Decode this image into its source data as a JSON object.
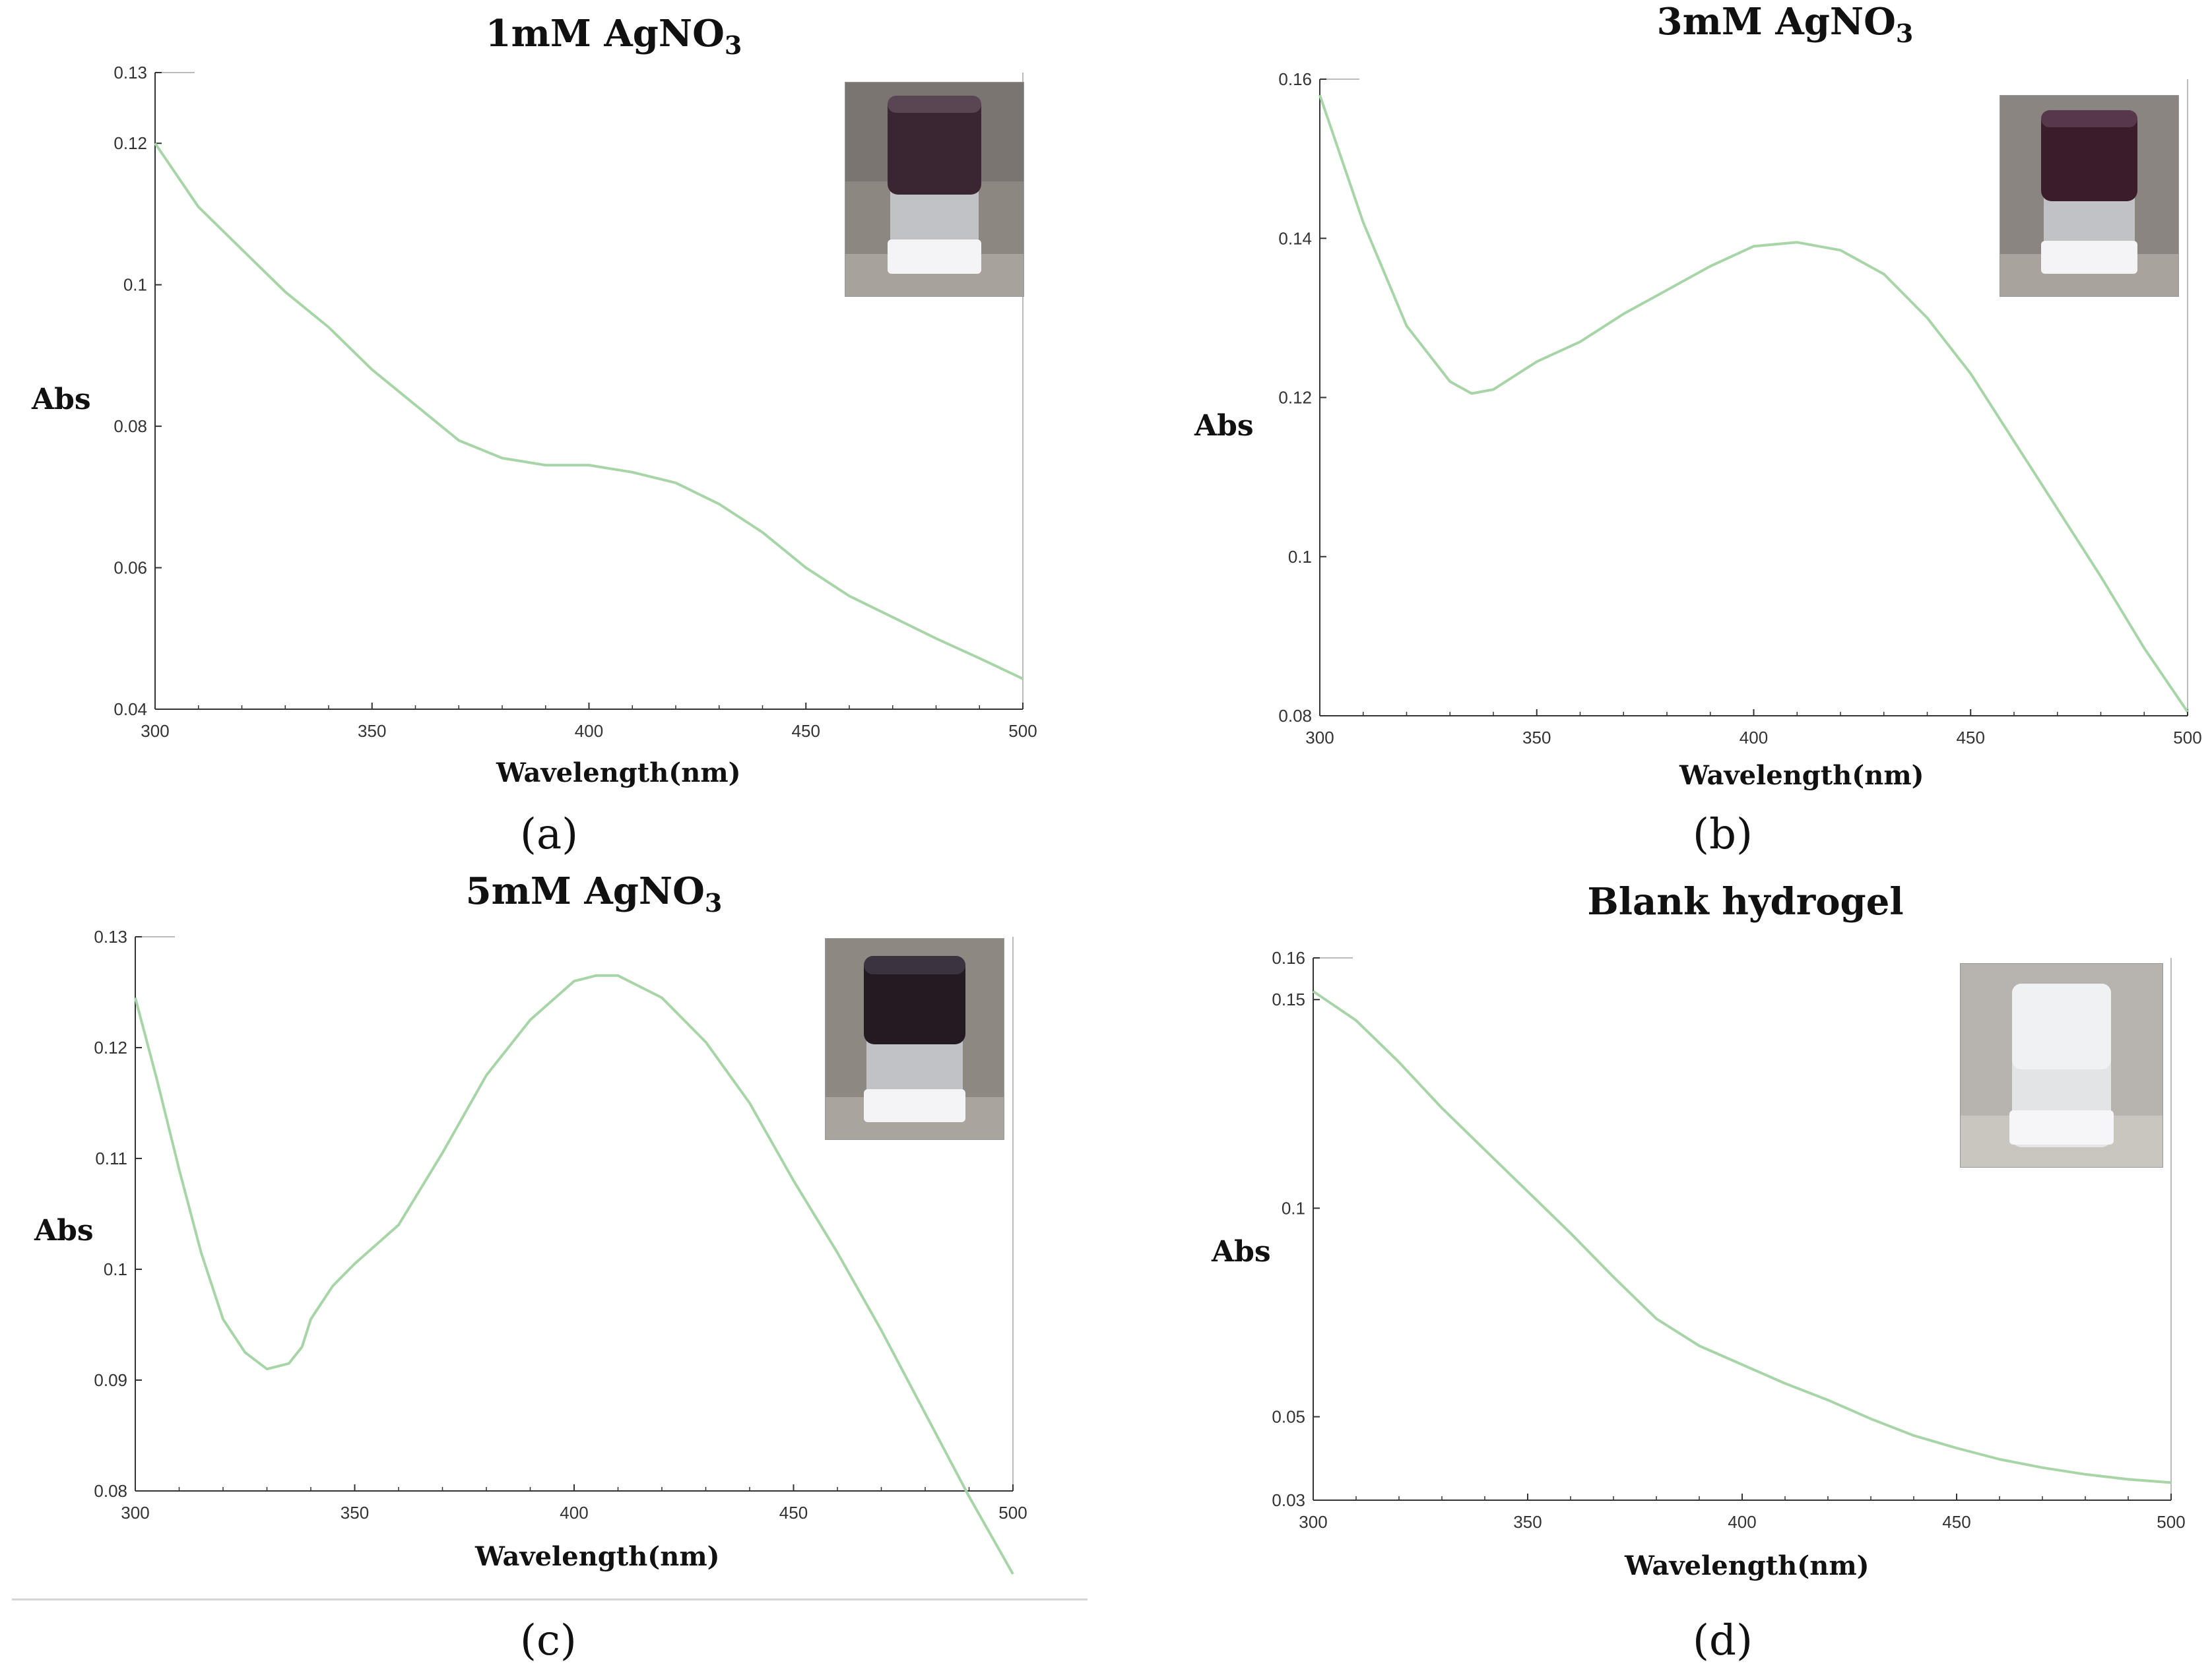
{
  "colors": {
    "curve": "#a8d5a8",
    "axis": "#333333",
    "cap": "#2a1a24",
    "label": "#111111"
  },
  "chart_data": [
    {
      "type": "line",
      "panel_label": "(a)",
      "title_main": "1mM AgNO",
      "title_sub": "3",
      "xlabel": "Wavelength(nm)",
      "ylabel": "Abs",
      "xlim": [
        300,
        500
      ],
      "ylim": [
        0.04,
        0.13
      ],
      "xticks": [
        300,
        350,
        400,
        450,
        500
      ],
      "xtick_labels": [
        "300",
        "350",
        "400",
        "450",
        "500"
      ],
      "yticks": [
        0.04,
        0.06,
        0.08,
        0.1,
        0.12,
        0.13
      ],
      "ytick_labels": [
        "0.04",
        "0.06",
        "0.08",
        "0.1",
        "0.12",
        "0.13"
      ],
      "inset": "vial-dark-gel-icon",
      "series": [
        {
          "name": "absorbance",
          "x": [
            300,
            310,
            320,
            330,
            340,
            350,
            360,
            370,
            380,
            390,
            400,
            410,
            420,
            430,
            440,
            450,
            460,
            470,
            480,
            490,
            500
          ],
          "y": [
            0.12,
            0.111,
            0.105,
            0.099,
            0.094,
            0.088,
            0.083,
            0.078,
            0.0755,
            0.0745,
            0.0745,
            0.0735,
            0.072,
            0.069,
            0.065,
            0.06,
            0.056,
            0.053,
            0.05,
            0.0472,
            0.0443
          ]
        }
      ]
    },
    {
      "type": "line",
      "panel_label": "(b)",
      "title_main": "3mM AgNO",
      "title_sub": "3",
      "xlabel": "Wavelength(nm)",
      "ylabel": "Abs",
      "xlim": [
        300,
        500
      ],
      "ylim": [
        0.08,
        0.16
      ],
      "xticks": [
        300,
        350,
        400,
        450,
        500
      ],
      "xtick_labels": [
        "300",
        "350",
        "400",
        "450",
        "500"
      ],
      "yticks": [
        0.08,
        0.1,
        0.12,
        0.14,
        0.16
      ],
      "ytick_labels": [
        "0.08",
        "0.1",
        "0.12",
        "0.14",
        "0.16"
      ],
      "inset": "vial-dark-gel-icon",
      "series": [
        {
          "name": "absorbance",
          "x": [
            300,
            310,
            320,
            330,
            335,
            340,
            350,
            360,
            370,
            380,
            390,
            400,
            410,
            420,
            430,
            440,
            450,
            460,
            470,
            480,
            490,
            500
          ],
          "y": [
            0.158,
            0.142,
            0.129,
            0.122,
            0.1205,
            0.121,
            0.1245,
            0.127,
            0.1305,
            0.1335,
            0.1365,
            0.139,
            0.1395,
            0.1385,
            0.1355,
            0.13,
            0.123,
            0.1145,
            0.106,
            0.0975,
            0.0885,
            0.0805
          ]
        }
      ]
    },
    {
      "type": "line",
      "panel_label": "(c)",
      "title_main": "5mM AgNO",
      "title_sub": "3",
      "xlabel": "Wavelength(nm)",
      "ylabel": "Abs",
      "xlim": [
        300,
        500
      ],
      "ylim": [
        0.08,
        0.13
      ],
      "xticks": [
        300,
        350,
        400,
        450,
        500
      ],
      "xtick_labels": [
        "300",
        "350",
        "400",
        "450",
        "500"
      ],
      "yticks": [
        0.08,
        0.09,
        0.1,
        0.11,
        0.12,
        0.13
      ],
      "ytick_labels": [
        "0.08",
        "0.09",
        "0.1",
        "0.11",
        "0.12",
        "0.13"
      ],
      "inset": "vial-dark-gel-icon",
      "series": [
        {
          "name": "absorbance",
          "x": [
            300,
            305,
            310,
            315,
            320,
            325,
            330,
            335,
            338,
            340,
            345,
            350,
            360,
            370,
            380,
            390,
            400,
            405,
            410,
            420,
            430,
            440,
            450,
            460,
            470,
            480,
            490,
            500
          ],
          "y": [
            0.1245,
            0.117,
            0.109,
            0.1015,
            0.0955,
            0.0925,
            0.091,
            0.0915,
            0.093,
            0.0955,
            0.0985,
            0.1005,
            0.104,
            0.1105,
            0.1175,
            0.1225,
            0.126,
            0.1265,
            0.1265,
            0.1245,
            0.1205,
            0.115,
            0.108,
            0.1015,
            0.0945,
            0.087,
            0.0795,
            0.0725
          ]
        }
      ]
    },
    {
      "type": "line",
      "panel_label": "(d)",
      "title_main": "Blank hydrogel",
      "title_sub": "",
      "xlabel": "Wavelength(nm)",
      "ylabel": "Abs",
      "xlim": [
        300,
        500
      ],
      "ylim": [
        0.03,
        0.16
      ],
      "xticks": [
        300,
        350,
        400,
        450,
        500
      ],
      "xtick_labels": [
        "300",
        "350",
        "400",
        "450",
        "500"
      ],
      "yticks": [
        0.03,
        0.05,
        0.1,
        0.15,
        0.16
      ],
      "ytick_labels": [
        "0.03",
        "0.05",
        "0.1",
        "0.15",
        "0.16"
      ],
      "inset": "vial-clear-gel-icon",
      "series": [
        {
          "name": "absorbance",
          "x": [
            300,
            310,
            320,
            330,
            340,
            350,
            360,
            370,
            380,
            390,
            400,
            410,
            420,
            430,
            440,
            450,
            460,
            470,
            480,
            490,
            500
          ],
          "y": [
            0.152,
            0.145,
            0.135,
            0.124,
            0.114,
            0.104,
            0.094,
            0.0835,
            0.0735,
            0.067,
            0.0625,
            0.058,
            0.054,
            0.0495,
            0.0455,
            0.0425,
            0.0398,
            0.0378,
            0.0362,
            0.035,
            0.0342
          ]
        }
      ]
    }
  ]
}
